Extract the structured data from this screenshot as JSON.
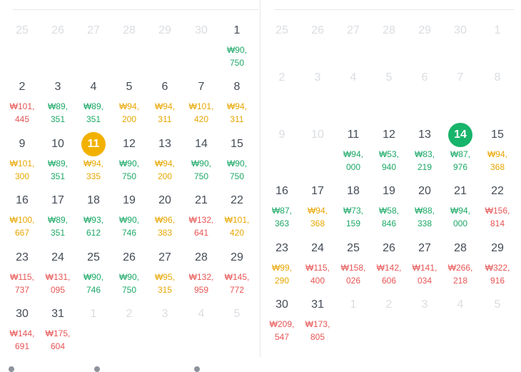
{
  "colors": {
    "green": "#1aa866",
    "yellow": "#e8a600",
    "red": "#e85454",
    "selected_bg": "#f2b100",
    "today_bg": "#17b46b"
  },
  "calendars": [
    {
      "weeks": [
        [
          {
            "day": "25",
            "type": "other"
          },
          {
            "day": "26",
            "type": "other"
          },
          {
            "day": "27",
            "type": "other"
          },
          {
            "day": "28",
            "type": "other"
          },
          {
            "day": "29",
            "type": "other"
          },
          {
            "day": "30",
            "type": "other"
          },
          {
            "day": "1",
            "p1": "₩90,",
            "p2": "750",
            "c": "green"
          }
        ],
        [
          {
            "day": "2",
            "p1": "₩101,",
            "p2": "445",
            "c": "red"
          },
          {
            "day": "3",
            "p1": "₩89,",
            "p2": "351",
            "c": "green"
          },
          {
            "day": "4",
            "p1": "₩89,",
            "p2": "351",
            "c": "green"
          },
          {
            "day": "5",
            "p1": "₩94,",
            "p2": "200",
            "c": "yellow"
          },
          {
            "day": "6",
            "p1": "₩94,",
            "p2": "311",
            "c": "yellow"
          },
          {
            "day": "7",
            "p1": "₩101,",
            "p2": "420",
            "c": "yellow"
          },
          {
            "day": "8",
            "p1": "₩94,",
            "p2": "311",
            "c": "yellow"
          }
        ],
        [
          {
            "day": "9",
            "p1": "₩101,",
            "p2": "300",
            "c": "yellow"
          },
          {
            "day": "10",
            "p1": "₩89,",
            "p2": "351",
            "c": "green"
          },
          {
            "day": "11",
            "p1": "₩94,",
            "p2": "335",
            "c": "yellow",
            "state": "selected"
          },
          {
            "day": "12",
            "p1": "₩90,",
            "p2": "750",
            "c": "green"
          },
          {
            "day": "13",
            "p1": "₩94,",
            "p2": "200",
            "c": "yellow"
          },
          {
            "day": "14",
            "p1": "₩90,",
            "p2": "750",
            "c": "green"
          },
          {
            "day": "15",
            "p1": "₩90,",
            "p2": "750",
            "c": "green"
          }
        ],
        [
          {
            "day": "16",
            "p1": "₩100,",
            "p2": "667",
            "c": "yellow"
          },
          {
            "day": "17",
            "p1": "₩89,",
            "p2": "351",
            "c": "green"
          },
          {
            "day": "18",
            "p1": "₩93,",
            "p2": "612",
            "c": "green"
          },
          {
            "day": "19",
            "p1": "₩90,",
            "p2": "746",
            "c": "green"
          },
          {
            "day": "20",
            "p1": "₩96,",
            "p2": "383",
            "c": "yellow"
          },
          {
            "day": "21",
            "p1": "₩132,",
            "p2": "641",
            "c": "red"
          },
          {
            "day": "22",
            "p1": "₩101,",
            "p2": "420",
            "c": "yellow"
          }
        ],
        [
          {
            "day": "23",
            "p1": "₩115,",
            "p2": "737",
            "c": "red"
          },
          {
            "day": "24",
            "p1": "₩131,",
            "p2": "095",
            "c": "red"
          },
          {
            "day": "25",
            "p1": "₩90,",
            "p2": "746",
            "c": "green"
          },
          {
            "day": "26",
            "p1": "₩90,",
            "p2": "750",
            "c": "green"
          },
          {
            "day": "27",
            "p1": "₩95,",
            "p2": "315",
            "c": "yellow"
          },
          {
            "day": "28",
            "p1": "₩132,",
            "p2": "959",
            "c": "red"
          },
          {
            "day": "29",
            "p1": "₩145,",
            "p2": "772",
            "c": "red"
          }
        ],
        [
          {
            "day": "30",
            "p1": "₩144,",
            "p2": "691",
            "c": "red"
          },
          {
            "day": "31",
            "p1": "₩175,",
            "p2": "604",
            "c": "red"
          },
          {
            "day": "1",
            "type": "other"
          },
          {
            "day": "2",
            "type": "other"
          },
          {
            "day": "3",
            "type": "other"
          },
          {
            "day": "4",
            "type": "other"
          },
          {
            "day": "5",
            "type": "other"
          }
        ]
      ]
    },
    {
      "weeks": [
        [
          {
            "day": "25",
            "type": "other"
          },
          {
            "day": "26",
            "type": "other"
          },
          {
            "day": "27",
            "type": "other"
          },
          {
            "day": "28",
            "type": "other"
          },
          {
            "day": "29",
            "type": "other"
          },
          {
            "day": "30",
            "type": "other"
          },
          {
            "day": "1",
            "type": "disabled"
          }
        ],
        [
          {
            "day": "2",
            "type": "disabled"
          },
          {
            "day": "3",
            "type": "disabled"
          },
          {
            "day": "4",
            "type": "disabled"
          },
          {
            "day": "5",
            "type": "disabled"
          },
          {
            "day": "6",
            "type": "disabled"
          },
          {
            "day": "7",
            "type": "disabled"
          },
          {
            "day": "8",
            "type": "disabled"
          }
        ],
        [
          {
            "day": "9",
            "type": "disabled"
          },
          {
            "day": "10",
            "type": "disabled"
          },
          {
            "day": "11",
            "p1": "₩94,",
            "p2": "000",
            "c": "green"
          },
          {
            "day": "12",
            "p1": "₩53,",
            "p2": "940",
            "c": "green"
          },
          {
            "day": "13",
            "p1": "₩83,",
            "p2": "219",
            "c": "green"
          },
          {
            "day": "14",
            "p1": "₩87,",
            "p2": "976",
            "c": "green",
            "state": "today"
          },
          {
            "day": "15",
            "p1": "₩94,",
            "p2": "368",
            "c": "yellow"
          }
        ],
        [
          {
            "day": "16",
            "p1": "₩87,",
            "p2": "363",
            "c": "green"
          },
          {
            "day": "17",
            "p1": "₩94,",
            "p2": "368",
            "c": "yellow"
          },
          {
            "day": "18",
            "p1": "₩73,",
            "p2": "159",
            "c": "green"
          },
          {
            "day": "19",
            "p1": "₩58,",
            "p2": "846",
            "c": "green"
          },
          {
            "day": "20",
            "p1": "₩88,",
            "p2": "338",
            "c": "green"
          },
          {
            "day": "21",
            "p1": "₩94,",
            "p2": "000",
            "c": "green"
          },
          {
            "day": "22",
            "p1": "₩156,",
            "p2": "814",
            "c": "red"
          }
        ],
        [
          {
            "day": "23",
            "p1": "₩99,",
            "p2": "290",
            "c": "yellow"
          },
          {
            "day": "24",
            "p1": "₩115,",
            "p2": "400",
            "c": "red"
          },
          {
            "day": "25",
            "p1": "₩158,",
            "p2": "026",
            "c": "red"
          },
          {
            "day": "26",
            "p1": "₩142,",
            "p2": "606",
            "c": "red"
          },
          {
            "day": "27",
            "p1": "₩141,",
            "p2": "034",
            "c": "red"
          },
          {
            "day": "28",
            "p1": "₩266,",
            "p2": "218",
            "c": "red"
          },
          {
            "day": "29",
            "p1": "₩322,",
            "p2": "916",
            "c": "red"
          }
        ],
        [
          {
            "day": "30",
            "p1": "₩209,",
            "p2": "547",
            "c": "red"
          },
          {
            "day": "31",
            "p1": "₩173,",
            "p2": "805",
            "c": "red"
          },
          {
            "day": "1",
            "type": "other"
          },
          {
            "day": "2",
            "type": "other"
          },
          {
            "day": "3",
            "type": "other"
          },
          {
            "day": "4",
            "type": "other"
          },
          {
            "day": "5",
            "type": "other"
          }
        ]
      ]
    }
  ]
}
